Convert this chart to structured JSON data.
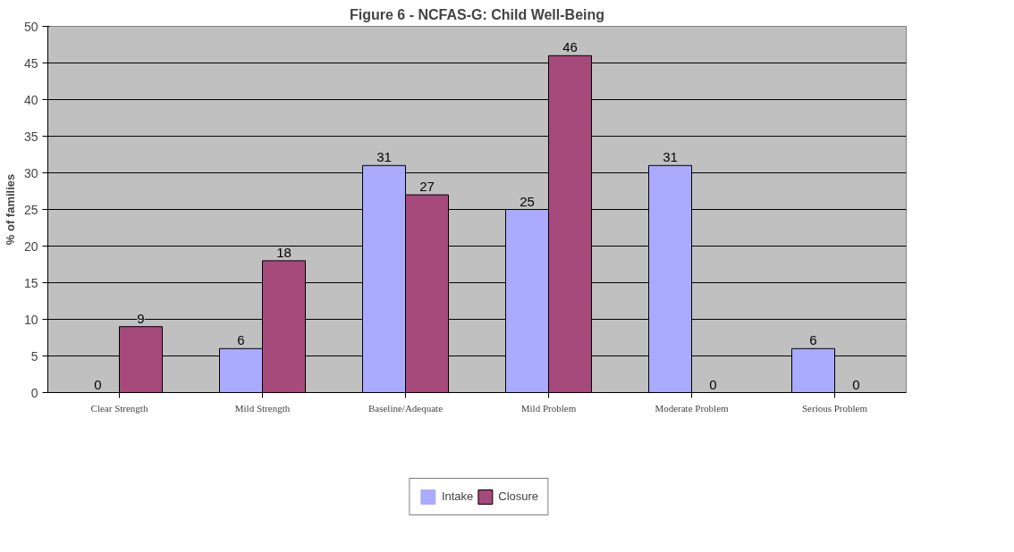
{
  "chart_data": {
    "type": "bar",
    "title": "Figure 6 - NCFAS-G: Child Well-Being",
    "ylabel": "% of families",
    "categories": [
      "Clear Strength",
      "Mild Strength",
      "Baseline/Adequate",
      "Mild Problem",
      "Moderate Problem",
      "Serious Problem"
    ],
    "series": [
      {
        "name": "Intake",
        "color": "#aaaaff",
        "values": [
          0,
          6,
          31,
          25,
          31,
          6
        ]
      },
      {
        "name": "Closure",
        "color": "#a64a7c",
        "values": [
          9,
          18,
          27,
          46,
          0,
          0
        ]
      }
    ],
    "ylim": [
      0,
      50
    ],
    "yticks": [
      0,
      5,
      10,
      15,
      20,
      25,
      30,
      35,
      40,
      45,
      50
    ],
    "grid": "y",
    "legend": "bottom",
    "data_labels": true
  }
}
